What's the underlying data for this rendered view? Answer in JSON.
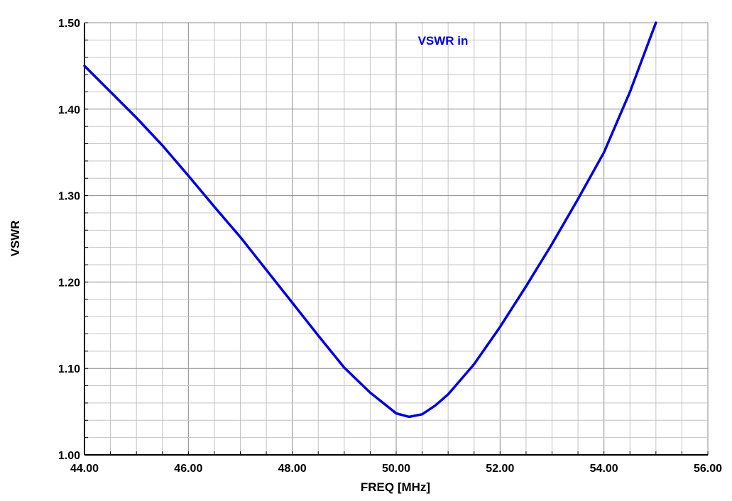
{
  "chart_data": {
    "type": "line",
    "xlabel": "FREQ [MHz]",
    "ylabel": "VSWR",
    "xlim": [
      44,
      56
    ],
    "ylim": [
      1.0,
      1.5
    ],
    "x_major_ticks": [
      44,
      46,
      48,
      50,
      52,
      54,
      56
    ],
    "y_major_ticks": [
      1.0,
      1.1,
      1.2,
      1.3,
      1.4,
      1.5
    ],
    "x_tick_labels": [
      "44.00",
      "46.00",
      "48.00",
      "50.00",
      "52.00",
      "54.00",
      "56.00"
    ],
    "y_tick_labels": [
      "1.00",
      "1.10",
      "1.20",
      "1.30",
      "1.40",
      "1.50"
    ],
    "grid": true,
    "series": [
      {
        "name": "VSWR in",
        "color": "#0000dd",
        "x": [
          44.0,
          44.5,
          45.0,
          45.5,
          46.0,
          46.5,
          47.0,
          47.5,
          48.0,
          48.5,
          49.0,
          49.5,
          50.0,
          50.25,
          50.5,
          50.75,
          51.0,
          51.5,
          52.0,
          52.5,
          53.0,
          53.5,
          54.0,
          54.5,
          55.0
        ],
        "y": [
          1.45,
          1.42,
          1.39,
          1.358,
          1.323,
          1.287,
          1.252,
          1.214,
          1.176,
          1.138,
          1.101,
          1.072,
          1.048,
          1.044,
          1.047,
          1.057,
          1.07,
          1.105,
          1.148,
          1.195,
          1.244,
          1.296,
          1.35,
          1.42,
          1.5
        ]
      }
    ]
  }
}
